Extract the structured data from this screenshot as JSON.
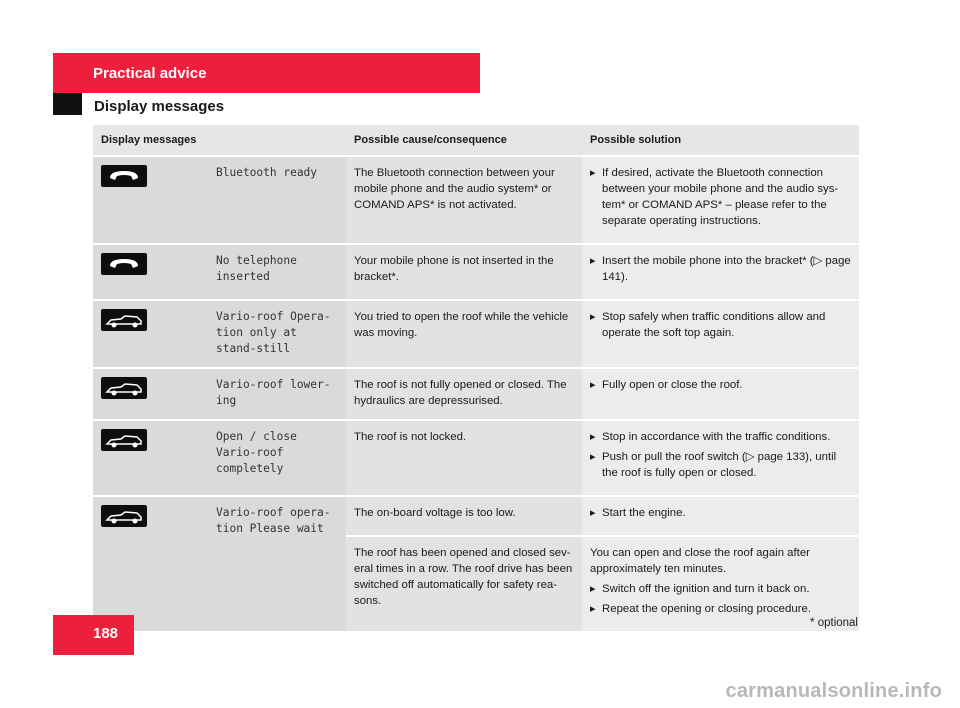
{
  "header": {
    "section": "Practical advice",
    "subsection": "Display messages"
  },
  "table": {
    "headers": [
      "Display messages",
      "Possible cause/consequence",
      "Possible solution"
    ],
    "rows": [
      {
        "icon": "telephone-handset-icon",
        "message": "Bluetooth ready",
        "cause": "The Bluetooth connection between your mobile phone and the audio system* or COMAND APS* is not activated.",
        "solution_steps": [
          "If desired, activate the Bluetooth connection between your mobile phone and the audio sys-tem* or COMAND APS* – please refer to the separate operating instructions."
        ]
      },
      {
        "icon": "telephone-handset-icon",
        "message": "No telephone inserted",
        "cause": "Your mobile phone is not inserted in the bracket*.",
        "solution_steps": [
          "Insert the mobile phone into the bracket* (▷ page 141)."
        ]
      },
      {
        "icon": "convertible-car-icon",
        "message": "Vario-roof Opera-tion only at stand-still",
        "cause": "You tried to open the roof while the vehicle was moving.",
        "solution_steps": [
          "Stop safely when traffic conditions allow and operate the soft top again."
        ]
      },
      {
        "icon": "convertible-car-icon",
        "message": "Vario-roof lower-ing",
        "cause": "The roof is not fully opened or closed. The hydraulics are depressurised.",
        "solution_steps": [
          "Fully open or close the roof."
        ]
      },
      {
        "icon": "convertible-car-icon",
        "message_part1": "Open / close",
        "message_part2": "Vario-roof completely",
        "message_color": "#e65d72",
        "cause": "The roof is not locked.",
        "solution_steps": [
          "Stop in accordance with the traffic conditions.",
          "Push or pull the roof switch (▷ page 133), until the roof is fully open or closed."
        ]
      },
      {
        "icon": "convertible-car-icon",
        "message": "Vario-roof opera-tion Please wait",
        "sub_rows": [
          {
            "cause": "The on-board voltage is too low.",
            "solution_steps": [
              "Start the engine."
            ]
          },
          {
            "cause": "The roof has been opened and closed sev-eral times in a row. The roof drive has been switched off automatically for safety rea-sons.",
            "solution_intro": "You can open and close the roof again after approximately ten minutes.",
            "solution_steps": [
              "Switch off the ignition and turn it back on.",
              "Repeat the opening or closing procedure."
            ]
          }
        ]
      }
    ]
  },
  "footer": {
    "page_number": "188",
    "footnote": "* optional",
    "watermark": "carmanualsonline.info"
  },
  "colors": {
    "brand_red": "#ee1f3c",
    "cell_gray": "#dadada",
    "highlight_text": "#e65d72"
  }
}
